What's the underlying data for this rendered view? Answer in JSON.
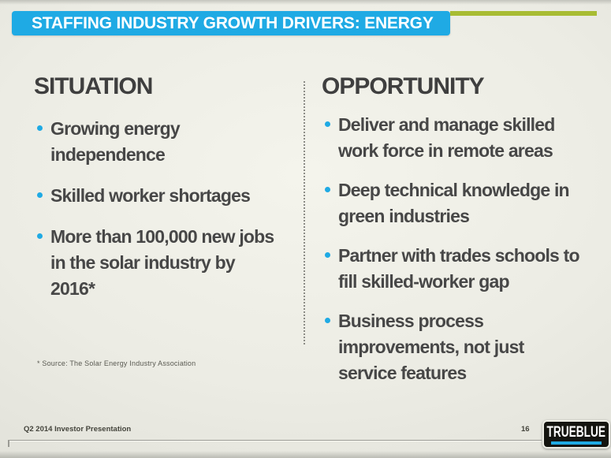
{
  "slide": {
    "title": "STAFFING INDUSTRY GROWTH DRIVERS: ENERGY",
    "colors": {
      "accent_blue": "#1FAAE4",
      "accent_green": "#A8BC33",
      "heading_text": "#3F3F3F",
      "body_text": "#474747",
      "logo_background": "#14140F"
    },
    "columns": [
      {
        "heading": "SITUATION",
        "bullets": [
          "Growing energy\nindependence",
          "Skilled worker shortages",
          "More than 100,000 new jobs\nin the solar industry by 2016*"
        ]
      },
      {
        "heading": "OPPORTUNITY",
        "bullets": [
          "Deliver and manage skilled\nwork force in remote areas",
          "Deep technical knowledge in\ngreen industries",
          "Partner with trades schools to\nfill skilled-worker gap",
          "Business process\nimprovements, not just\nservice features"
        ]
      }
    ],
    "footnote": "* Source: The Solar Energy Industry Association",
    "footer": {
      "left": "Q2 2014 Investor Presentation",
      "page_number": "16",
      "logo_text": "TRUEBLUE"
    }
  }
}
